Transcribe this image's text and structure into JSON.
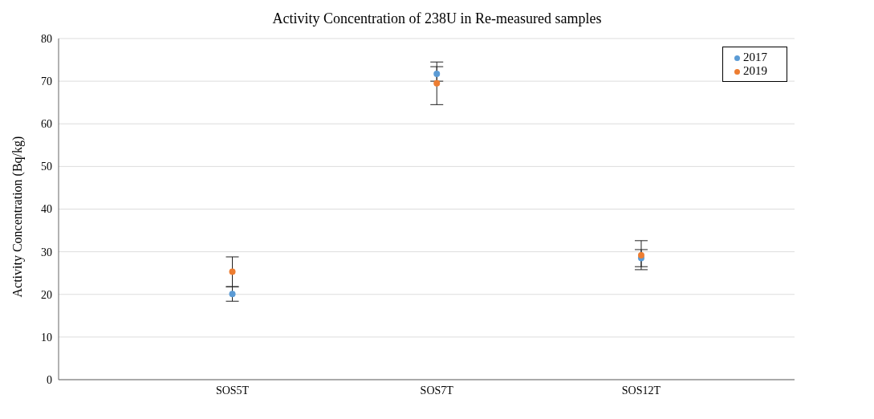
{
  "chart_data": {
    "type": "scatter",
    "title": "Activity Concentration of 238U in Re-measured samples",
    "ylabel": "Activity Concentration (Bq/kg)",
    "categories": [
      "SOS5T",
      "SOS7T",
      "SOS12T"
    ],
    "series": [
      {
        "name": "2017",
        "color": "#5b9bd5",
        "values": [
          20.1,
          71.7,
          28.5
        ],
        "errors": [
          1.7,
          1.7,
          2
        ]
      },
      {
        "name": "2019",
        "color": "#ed7d31",
        "values": [
          25.3,
          69.5,
          29.2
        ],
        "errors": [
          3.5,
          5,
          3.4
        ]
      }
    ],
    "ylim": [
      0,
      80
    ],
    "yticks": [
      0,
      10,
      20,
      30,
      40,
      50,
      60,
      70,
      80
    ],
    "grid": "y",
    "legend": "top right",
    "marker": "circle"
  }
}
